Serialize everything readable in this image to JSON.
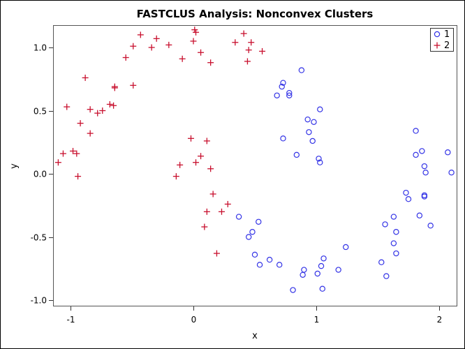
{
  "chart_data": {
    "type": "scatter",
    "title": "FASTCLUS Analysis: Nonconvex Clusters",
    "xlabel": "x",
    "ylabel": "y",
    "xlim": [
      -1.14,
      2.14
    ],
    "ylim": [
      -1.05,
      1.18
    ],
    "xticks": [
      -1,
      0,
      1,
      2
    ],
    "xtick_labels": [
      "-1",
      "0",
      "1",
      "2"
    ],
    "yticks": [
      1.0,
      0.5,
      0.0,
      -0.5,
      -1.0
    ],
    "ytick_labels": [
      "1.0",
      "0.5",
      "0.0",
      "-0.5",
      "-1.0"
    ],
    "grid": false,
    "legend_position": "top-right inside",
    "series": [
      {
        "name": "1",
        "marker": "circle",
        "color": "#3333e6",
        "points": [
          [
            0.88,
            0.82
          ],
          [
            0.73,
            0.72
          ],
          [
            0.72,
            0.69
          ],
          [
            0.68,
            0.62
          ],
          [
            0.78,
            0.64
          ],
          [
            0.78,
            0.62
          ],
          [
            1.03,
            0.51
          ],
          [
            0.93,
            0.43
          ],
          [
            0.98,
            0.41
          ],
          [
            0.94,
            0.33
          ],
          [
            0.73,
            0.28
          ],
          [
            0.97,
            0.26
          ],
          [
            0.84,
            0.15
          ],
          [
            1.02,
            0.12
          ],
          [
            1.03,
            0.09
          ],
          [
            0.37,
            -0.34
          ],
          [
            0.53,
            -0.38
          ],
          [
            0.48,
            -0.46
          ],
          [
            0.45,
            -0.5
          ],
          [
            0.5,
            -0.64
          ],
          [
            0.54,
            -0.72
          ],
          [
            0.62,
            -0.68
          ],
          [
            0.7,
            -0.72
          ],
          [
            0.9,
            -0.76
          ],
          [
            0.89,
            -0.8
          ],
          [
            0.81,
            -0.92
          ],
          [
            1.06,
            -0.67
          ],
          [
            1.04,
            -0.73
          ],
          [
            1.01,
            -0.79
          ],
          [
            1.05,
            -0.91
          ],
          [
            1.18,
            -0.76
          ],
          [
            1.24,
            -0.58
          ],
          [
            1.81,
            0.34
          ],
          [
            1.86,
            0.18
          ],
          [
            1.81,
            0.15
          ],
          [
            2.07,
            0.17
          ],
          [
            1.88,
            0.06
          ],
          [
            1.89,
            0.01
          ],
          [
            2.1,
            0.01
          ],
          [
            1.73,
            -0.15
          ],
          [
            1.75,
            -0.2
          ],
          [
            1.88,
            -0.17
          ],
          [
            1.88,
            -0.18
          ],
          [
            1.63,
            -0.34
          ],
          [
            1.84,
            -0.33
          ],
          [
            1.56,
            -0.4
          ],
          [
            1.93,
            -0.41
          ],
          [
            1.65,
            -0.46
          ],
          [
            1.63,
            -0.55
          ],
          [
            1.65,
            -0.63
          ],
          [
            1.53,
            -0.7
          ],
          [
            1.57,
            -0.81
          ]
        ]
      },
      {
        "name": "2",
        "marker": "plus",
        "color": "#c8102e",
        "points": [
          [
            -1.03,
            0.53
          ],
          [
            -0.43,
            1.1
          ],
          [
            -0.3,
            1.07
          ],
          [
            -0.49,
            1.01
          ],
          [
            -0.34,
            1.0
          ],
          [
            -0.2,
            1.02
          ],
          [
            -0.55,
            0.92
          ],
          [
            -0.09,
            0.91
          ],
          [
            -0.88,
            0.76
          ],
          [
            -0.64,
            0.68
          ],
          [
            -0.64,
            0.69
          ],
          [
            -0.49,
            0.7
          ],
          [
            -0.84,
            0.51
          ],
          [
            -0.78,
            0.48
          ],
          [
            -0.74,
            0.5
          ],
          [
            -0.68,
            0.55
          ],
          [
            -0.65,
            0.54
          ],
          [
            -0.92,
            0.4
          ],
          [
            -0.84,
            0.32
          ],
          [
            -1.06,
            0.16
          ],
          [
            -0.98,
            0.18
          ],
          [
            -0.95,
            0.16
          ],
          [
            -1.1,
            0.09
          ],
          [
            -0.94,
            -0.02
          ],
          [
            -0.11,
            0.07
          ],
          [
            -0.14,
            -0.02
          ],
          [
            -0.02,
            0.28
          ],
          [
            0.11,
            0.26
          ],
          [
            0.06,
            0.14
          ],
          [
            0.02,
            0.09
          ],
          [
            0.14,
            0.04
          ],
          [
            0.16,
            -0.16
          ],
          [
            0.28,
            -0.24
          ],
          [
            0.11,
            -0.3
          ],
          [
            0.23,
            -0.3
          ],
          [
            0.09,
            -0.42
          ],
          [
            0.19,
            -0.63
          ],
          [
            0.01,
            1.14
          ],
          [
            0.02,
            1.12
          ],
          [
            0.0,
            1.05
          ],
          [
            0.06,
            0.96
          ],
          [
            0.14,
            0.88
          ],
          [
            0.41,
            1.11
          ],
          [
            0.34,
            1.04
          ],
          [
            0.47,
            1.04
          ],
          [
            0.45,
            0.98
          ],
          [
            0.56,
            0.97
          ],
          [
            0.44,
            0.89
          ]
        ]
      }
    ]
  },
  "legend": {
    "items": [
      {
        "label": "1",
        "symbol": "circle-icon"
      },
      {
        "label": "2",
        "symbol": "plus-icon"
      }
    ]
  }
}
